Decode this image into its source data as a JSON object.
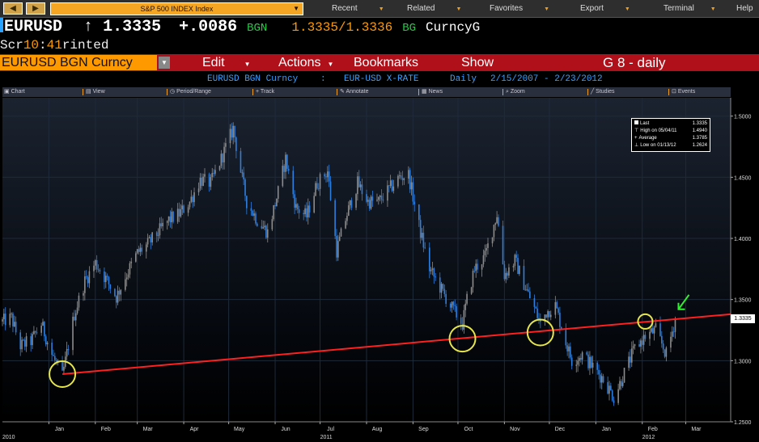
{
  "topbar": {
    "back_label": "◀",
    "forward_label": "▶",
    "index_selector": "S&P 500 INDEX Index",
    "menu": [
      "Recent",
      "Related",
      "Favorites",
      "Export",
      "Terminal",
      "Help"
    ]
  },
  "ticker": {
    "symbol": "EURUSD",
    "arrow": "↑",
    "last": "1.3335",
    "change": "+.0086",
    "source": "BGN",
    "bid_ask": "1.3335/1.3336",
    "source2": "BG",
    "mnemonic": "CurncyG"
  },
  "screen": {
    "pre": "Scr",
    "time_h": "10",
    "colon": ":",
    "time_m": "41",
    "post": "rinted"
  },
  "menubar": {
    "security": "EURUSD BGN Curncy",
    "items": [
      "Edit",
      "Actions",
      "Bookmarks",
      "Show"
    ],
    "code": "G 8 - daily"
  },
  "info": {
    "security": "EURUSD BGN Curncy",
    "sep": ":",
    "name": "EUR-USD X-RATE",
    "period": "Daily",
    "range": "2/15/2007 - 2/23/2012"
  },
  "tools": [
    "Chart",
    "View",
    "Period/Range",
    "Track",
    "Annotate",
    "News",
    "Zoom",
    "Studies",
    "Events"
  ],
  "legend": {
    "rows": [
      {
        "label": "Last",
        "value": "1.3335"
      },
      {
        "label": "High on 05/04/11",
        "value": "1.4940"
      },
      {
        "label": "Average",
        "value": "1.3785"
      },
      {
        "label": "Low on 01/13/12",
        "value": "1.2624"
      }
    ]
  },
  "last_badge": "1.3335",
  "colors": {
    "up": "#8c8c8c",
    "down": "#2f7fe0",
    "trendline": "#ff2020",
    "circle": "#e6e64a",
    "arrow": "#33ee33",
    "grid": "#1e2a3a",
    "ticker_green": "#22cc44",
    "ticker_orange": "#ff9900"
  },
  "chart_data": {
    "type": "candlestick",
    "period": "daily",
    "x_range": [
      "2010-12-01",
      "2012-03-31"
    ],
    "ylim": [
      1.25,
      1.515
    ],
    "yticks": [
      1.25,
      1.3,
      1.35,
      1.4,
      1.45,
      1.5
    ],
    "ytick_labels": [
      "1.2500",
      "1.3000",
      "1.3500",
      "1.4000",
      "1.4500",
      "1.5000"
    ],
    "month_labels": [
      {
        "date": "2011-01-01",
        "label": "Jan"
      },
      {
        "date": "2011-02-01",
        "label": "Feb"
      },
      {
        "date": "2011-03-01",
        "label": "Mar"
      },
      {
        "date": "2011-04-01",
        "label": "Apr"
      },
      {
        "date": "2011-05-01",
        "label": "May"
      },
      {
        "date": "2011-06-01",
        "label": "Jun"
      },
      {
        "date": "2011-07-01",
        "label": "Jul"
      },
      {
        "date": "2011-08-01",
        "label": "Aug"
      },
      {
        "date": "2011-09-01",
        "label": "Sep"
      },
      {
        "date": "2011-10-01",
        "label": "Oct"
      },
      {
        "date": "2011-11-01",
        "label": "Nov"
      },
      {
        "date": "2011-12-01",
        "label": "Dec"
      },
      {
        "date": "2012-01-01",
        "label": "Jan"
      },
      {
        "date": "2012-02-01",
        "label": "Feb"
      },
      {
        "date": "2012-03-01",
        "label": "Mar"
      }
    ],
    "year_labels": [
      {
        "date": "2010-12-01",
        "label": "2010"
      },
      {
        "date": "2011-07-01",
        "label": "2011"
      },
      {
        "date": "2012-02-01",
        "label": "2012"
      }
    ],
    "closes": [
      [
        "2010-12-01",
        1.332
      ],
      [
        "2010-12-07",
        1.335
      ],
      [
        "2010-12-13",
        1.312
      ],
      [
        "2010-12-20",
        1.316
      ],
      [
        "2010-12-27",
        1.33
      ],
      [
        "2011-01-03",
        1.305
      ],
      [
        "2011-01-10",
        1.287
      ],
      [
        "2011-01-13",
        1.306
      ],
      [
        "2011-01-18",
        1.338
      ],
      [
        "2011-01-25",
        1.365
      ],
      [
        "2011-02-01",
        1.38
      ],
      [
        "2011-02-08",
        1.367
      ],
      [
        "2011-02-15",
        1.352
      ],
      [
        "2011-02-22",
        1.371
      ],
      [
        "2011-03-01",
        1.388
      ],
      [
        "2011-03-08",
        1.395
      ],
      [
        "2011-03-15",
        1.405
      ],
      [
        "2011-03-22",
        1.415
      ],
      [
        "2011-03-29",
        1.42
      ],
      [
        "2011-04-05",
        1.43
      ],
      [
        "2011-04-12",
        1.448
      ],
      [
        "2011-04-19",
        1.445
      ],
      [
        "2011-04-26",
        1.465
      ],
      [
        "2011-05-04",
        1.49
      ],
      [
        "2011-05-09",
        1.455
      ],
      [
        "2011-05-13",
        1.43
      ],
      [
        "2011-05-20",
        1.415
      ],
      [
        "2011-05-27",
        1.405
      ],
      [
        "2011-06-03",
        1.438
      ],
      [
        "2011-06-08",
        1.465
      ],
      [
        "2011-06-15",
        1.425
      ],
      [
        "2011-06-22",
        1.418
      ],
      [
        "2011-06-29",
        1.445
      ],
      [
        "2011-07-06",
        1.455
      ],
      [
        "2011-07-12",
        1.39
      ],
      [
        "2011-07-19",
        1.42
      ],
      [
        "2011-07-26",
        1.445
      ],
      [
        "2011-08-02",
        1.43
      ],
      [
        "2011-08-09",
        1.43
      ],
      [
        "2011-08-16",
        1.44
      ],
      [
        "2011-08-23",
        1.45
      ],
      [
        "2011-08-29",
        1.452
      ],
      [
        "2011-09-05",
        1.41
      ],
      [
        "2011-09-12",
        1.375
      ],
      [
        "2011-09-19",
        1.36
      ],
      [
        "2011-09-26",
        1.345
      ],
      [
        "2011-10-04",
        1.33
      ],
      [
        "2011-10-07",
        1.35
      ],
      [
        "2011-10-12",
        1.375
      ],
      [
        "2011-10-19",
        1.385
      ],
      [
        "2011-10-27",
        1.42
      ],
      [
        "2011-11-01",
        1.37
      ],
      [
        "2011-11-08",
        1.382
      ],
      [
        "2011-11-15",
        1.36
      ],
      [
        "2011-11-22",
        1.34
      ],
      [
        "2011-11-25",
        1.33
      ],
      [
        "2011-11-29",
        1.34
      ],
      [
        "2011-12-05",
        1.345
      ],
      [
        "2011-12-12",
        1.315
      ],
      [
        "2011-12-16",
        1.3
      ],
      [
        "2011-12-23",
        1.305
      ],
      [
        "2011-12-30",
        1.295
      ],
      [
        "2012-01-06",
        1.285
      ],
      [
        "2012-01-13",
        1.27
      ],
      [
        "2012-01-20",
        1.29
      ],
      [
        "2012-01-27",
        1.31
      ],
      [
        "2012-02-03",
        1.32
      ],
      [
        "2012-02-10",
        1.325
      ],
      [
        "2012-02-17",
        1.305
      ],
      [
        "2012-02-23",
        1.3335
      ]
    ],
    "trendline": {
      "from": [
        "2011-01-10",
        1.289
      ],
      "to": [
        "2012-03-31",
        1.338
      ]
    },
    "circles": [
      {
        "date": "2011-01-10",
        "value": 1.289
      },
      {
        "date": "2011-10-04",
        "value": 1.318
      },
      {
        "date": "2011-11-25",
        "value": 1.323
      },
      {
        "date": "2012-02-03",
        "value": 1.332
      }
    ],
    "arrow_at": {
      "date": "2012-02-23",
      "value": 1.342
    },
    "grid": true,
    "legend_position": "top-right"
  }
}
